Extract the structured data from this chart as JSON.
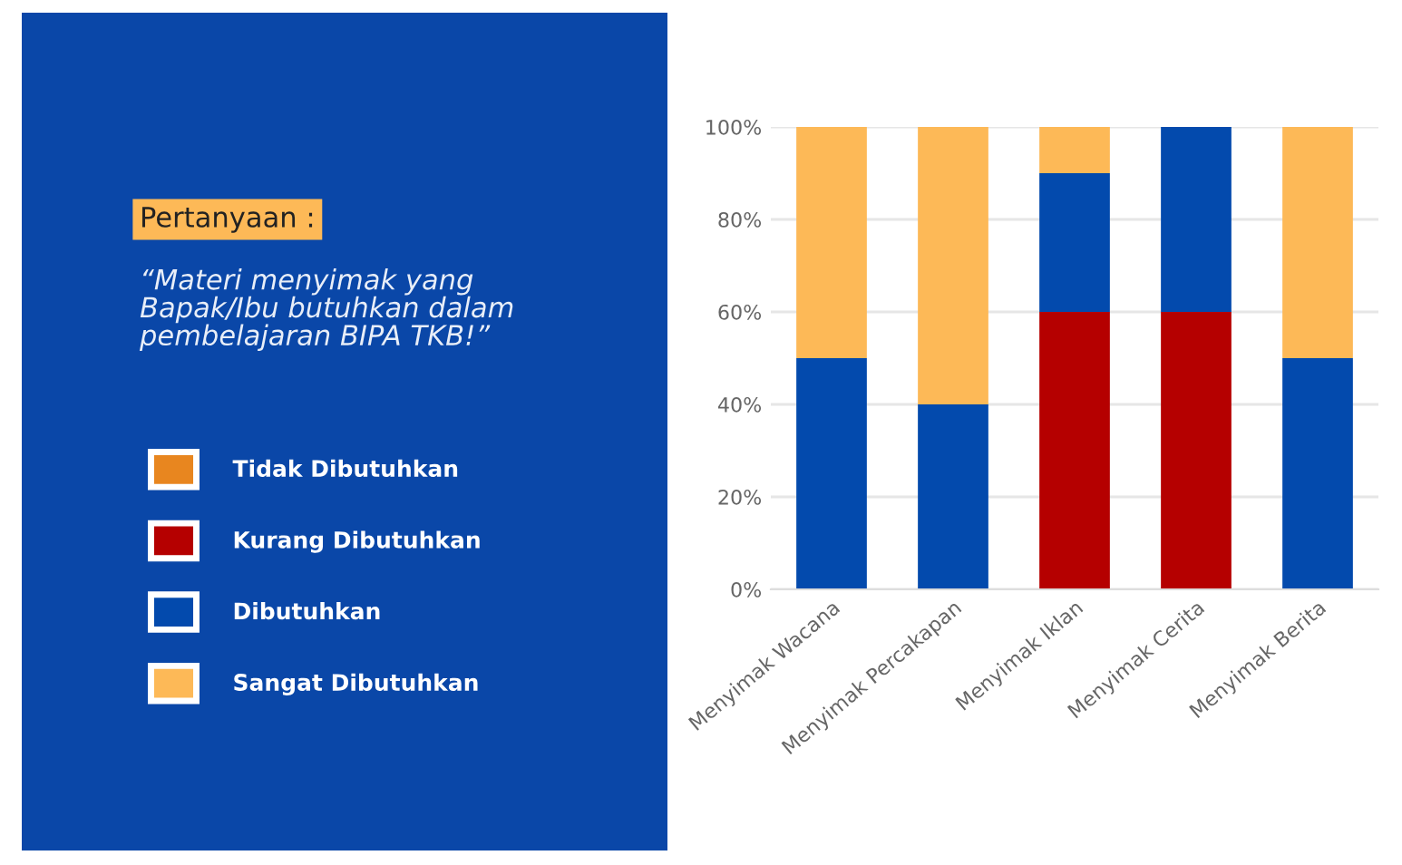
{
  "chart_data": {
    "type": "bar",
    "stacked": true,
    "title": "Pertanyaan :",
    "subtitle": "“Materi menyimak yang\nBapak/Ibu butuhkan dalam\npembelajaran BIPA TKB!”",
    "categories": [
      "Menyimak Wacana",
      "Menyimak Percakapan",
      "Menyimak Iklan",
      "Menyimak Cerita",
      "Menyimak Berita"
    ],
    "series": [
      {
        "name": "Tidak Dibutuhkan",
        "color": "#e8861f",
        "values": [
          0,
          0,
          0,
          0,
          0
        ]
      },
      {
        "name": "Kurang Dibutuhkan",
        "color": "#b50000",
        "values": [
          0,
          0,
          60,
          60,
          0
        ]
      },
      {
        "name": "Dibutuhkan",
        "color": "#034aad",
        "values": [
          50,
          40,
          30,
          40,
          50
        ]
      },
      {
        "name": "Sangat Dibutuhkan",
        "color": "#fdb957",
        "values": [
          50,
          60,
          10,
          0,
          50
        ]
      }
    ],
    "ylim": [
      0,
      100
    ],
    "yticks": [
      {
        "value": 0,
        "label": "0%"
      },
      {
        "value": 20,
        "label": "20%"
      },
      {
        "value": 40,
        "label": "40%"
      },
      {
        "value": 60,
        "label": "60%"
      },
      {
        "value": 80,
        "label": "80%"
      },
      {
        "value": 100,
        "label": "100%"
      }
    ],
    "grid": "y",
    "legend": "left"
  }
}
